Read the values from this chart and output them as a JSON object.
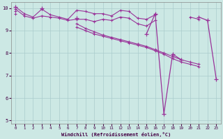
{
  "xlabel": "Windchill (Refroidissement éolien,°C)",
  "background_color": "#cce8e4",
  "line_color": "#993399",
  "grid_color": "#aacccc",
  "x": [
    0,
    1,
    2,
    3,
    4,
    5,
    6,
    7,
    8,
    9,
    10,
    11,
    12,
    13,
    14,
    15,
    16,
    17,
    18,
    19,
    20,
    21,
    22,
    23
  ],
  "s1": [
    10.05,
    9.75,
    9.6,
    9.95,
    9.7,
    9.6,
    9.5,
    9.9,
    9.85,
    9.75,
    9.75,
    9.65,
    9.9,
    9.85,
    9.55,
    9.5,
    9.7,
    null,
    null,
    null,
    9.6,
    9.5,
    null,
    null
  ],
  "s2": [
    9.95,
    9.65,
    9.55,
    9.65,
    9.6,
    9.55,
    9.45,
    9.5,
    9.5,
    9.4,
    9.5,
    9.45,
    9.6,
    9.55,
    9.3,
    9.2,
    9.45,
    null,
    null,
    null,
    null,
    null,
    null,
    null
  ],
  "s3": [
    9.85,
    null,
    null,
    null,
    null,
    null,
    null,
    9.3,
    9.1,
    8.95,
    8.8,
    8.7,
    8.6,
    8.5,
    8.4,
    8.3,
    8.15,
    8.0,
    7.85,
    7.7,
    7.6,
    7.5,
    null,
    null
  ],
  "s4": [
    9.75,
    null,
    null,
    null,
    null,
    null,
    null,
    9.15,
    9.0,
    8.85,
    8.75,
    8.65,
    8.55,
    8.45,
    8.35,
    8.25,
    8.1,
    7.95,
    7.75,
    7.6,
    7.5,
    7.4,
    null,
    null
  ],
  "s5": [
    10.05,
    null,
    null,
    10.0,
    null,
    null,
    null,
    9.55,
    null,
    null,
    null,
    null,
    null,
    null,
    null,
    8.85,
    9.75,
    5.3,
    7.95,
    7.7,
    null,
    9.6,
    9.45,
    6.85
  ],
  "xlim": [
    -0.5,
    23.5
  ],
  "ylim": [
    4.85,
    10.25
  ],
  "yticks": [
    5,
    6,
    7,
    8,
    9,
    10
  ],
  "xticks": [
    0,
    1,
    2,
    3,
    4,
    5,
    6,
    7,
    8,
    9,
    10,
    11,
    12,
    13,
    14,
    15,
    16,
    17,
    18,
    19,
    20,
    21,
    22,
    23
  ]
}
